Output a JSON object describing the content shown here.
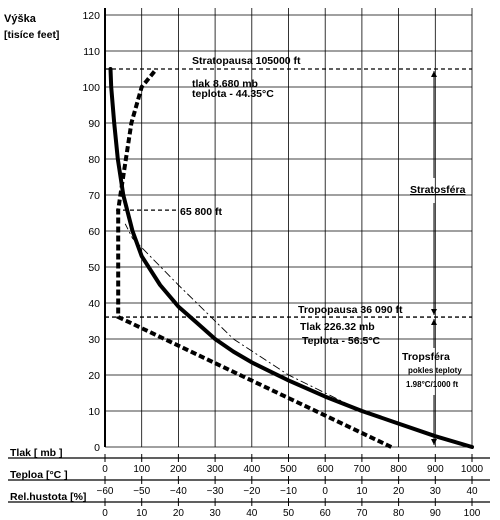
{
  "chart_data": {
    "type": "line",
    "title": "",
    "y_axis": {
      "label_line1": "Výška",
      "label_line2": "[tisíce feet]",
      "min": 0,
      "max": 120,
      "ticks": [
        0,
        10,
        20,
        30,
        40,
        50,
        60,
        70,
        80,
        90,
        100,
        110,
        120
      ]
    },
    "x_axes": [
      {
        "label": "Tlak [ mb ]",
        "min": 0,
        "max": 1000,
        "ticks": [
          "0",
          "100",
          "200",
          "300",
          "400",
          "500",
          "600",
          "700",
          "800",
          "900",
          "1000"
        ]
      },
      {
        "label": "Teploa [°C ]",
        "min": -60,
        "max": 40,
        "ticks": [
          "−60",
          "−50",
          "−40",
          "−30",
          "−20",
          "−10",
          "0",
          "10",
          "20",
          "30",
          "40"
        ]
      },
      {
        "label": "Rel.hustota [%]",
        "min": 0,
        "max": 100,
        "ticks": [
          "0",
          "10",
          "20",
          "30",
          "40",
          "50",
          "60",
          "70",
          "80",
          "90",
          "100"
        ]
      }
    ],
    "series": [
      {
        "style": "solid-thick",
        "points": [
          [
            1000,
            0
          ],
          [
            900,
            3
          ],
          [
            800,
            6.5
          ],
          [
            700,
            10
          ],
          [
            600,
            14
          ],
          [
            500,
            18.5
          ],
          [
            450,
            21
          ],
          [
            400,
            23.5
          ],
          [
            350,
            26.5
          ],
          [
            300,
            30
          ],
          [
            250,
            34.5
          ],
          [
            200,
            39
          ],
          [
            150,
            45
          ],
          [
            100,
            53
          ],
          [
            75,
            60
          ],
          [
            50,
            70
          ],
          [
            35,
            80
          ],
          [
            25,
            90
          ],
          [
            17,
            100
          ],
          [
            15,
            105
          ]
        ]
      },
      {
        "style": "dashed-thick",
        "points": [
          [
            780,
            0
          ],
          [
            36,
            36.1
          ],
          [
            36,
            65.8
          ],
          [
            42,
            70
          ],
          [
            57,
            80
          ],
          [
            72,
            90
          ],
          [
            100,
            100
          ],
          [
            140,
            105
          ]
        ]
      },
      {
        "style": "dash-dot-thin",
        "points": [
          [
            1000,
            0
          ],
          [
            700,
            10
          ],
          [
            500,
            20
          ],
          [
            350,
            30
          ],
          [
            200,
            45
          ],
          [
            75,
            58
          ],
          [
            55,
            62
          ]
        ]
      }
    ],
    "reference_lines": [
      {
        "label": "Stratopausa 105000 ft",
        "y": 105
      },
      {
        "label": "Tropopausa 36 090 ft",
        "y": 36.1
      },
      {
        "label": "65 800 ft",
        "y": 65.8
      }
    ],
    "annotations": {
      "stratopausa_pressure": "tlak 8.680 mb",
      "stratopausa_temp": "teplota - 44.35°C",
      "tropopausa_pressure": "Tlak 226.32 mb",
      "tropopausa_temp": "Teplota - 56.5°C",
      "stratosfera": "Stratosféra",
      "troposfera": "Tropsféra",
      "troposfera_note1": "pokles teploty",
      "troposfera_note2": "1.98°C/1000 ft"
    },
    "grid": true
  }
}
